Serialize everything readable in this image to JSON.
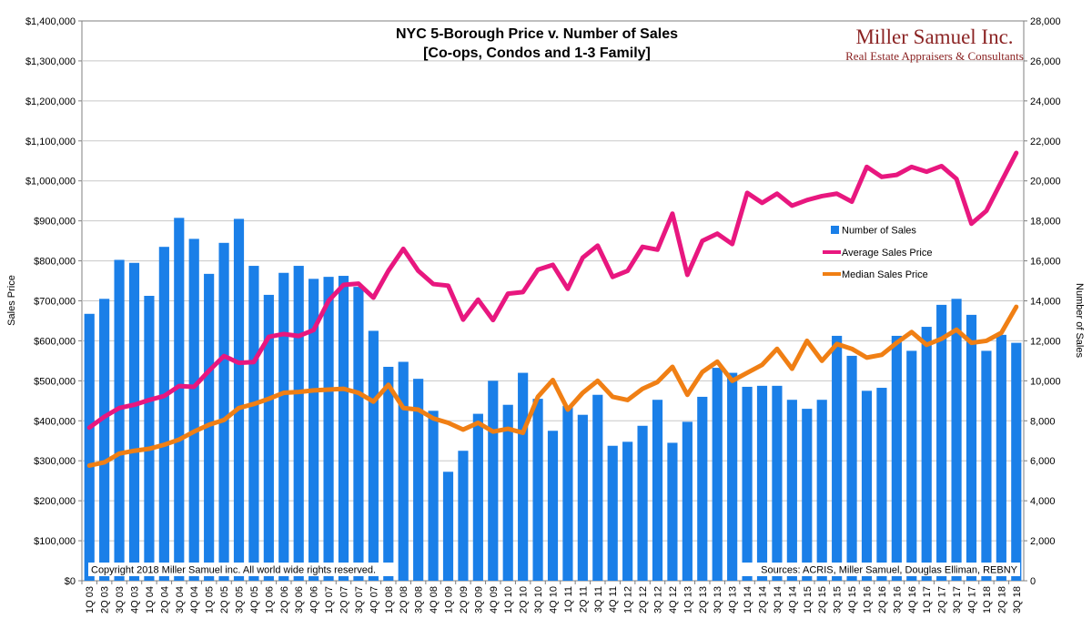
{
  "chart_data": {
    "type": "bar+line",
    "title_line1": "NYC 5-Borough Price v. Number of Sales",
    "title_line2": "[Co-ops, Condos and 1-3 Family]",
    "ylabel_left": "Sales Price",
    "ylabel_right": "Number of Sales",
    "ylim_left": [
      0,
      1400000
    ],
    "ylim_right": [
      0,
      28000
    ],
    "left_ticks": [
      "$0",
      "$100,000",
      "$200,000",
      "$300,000",
      "$400,000",
      "$500,000",
      "$600,000",
      "$700,000",
      "$800,000",
      "$900,000",
      "$1,000,000",
      "$1,100,000",
      "$1,200,000",
      "$1,300,000",
      "$1,400,000"
    ],
    "right_ticks": [
      "0",
      "2,000",
      "4,000",
      "6,000",
      "8,000",
      "10,000",
      "12,000",
      "14,000",
      "16,000",
      "18,000",
      "20,000",
      "22,000",
      "24,000",
      "26,000",
      "28,000"
    ],
    "categories": [
      "1Q 03",
      "2Q 03",
      "3Q 03",
      "4Q 03",
      "1Q 04",
      "2Q 04",
      "3Q 04",
      "4Q 04",
      "1Q 05",
      "2Q 05",
      "3Q 05",
      "4Q 05",
      "1Q 06",
      "2Q 06",
      "3Q 06",
      "4Q 06",
      "1Q 07",
      "2Q 07",
      "3Q 07",
      "4Q 07",
      "1Q 08",
      "2Q 08",
      "3Q 08",
      "4Q 08",
      "1Q 09",
      "2Q 09",
      "3Q 09",
      "4Q 09",
      "1Q 10",
      "2Q 10",
      "3Q 10",
      "4Q 10",
      "1Q 11",
      "2Q 11",
      "3Q 11",
      "4Q 11",
      "1Q 12",
      "2Q 12",
      "3Q 12",
      "4Q 12",
      "1Q 13",
      "2Q 13",
      "3Q 13",
      "4Q 13",
      "1Q 14",
      "2Q 14",
      "3Q 14",
      "4Q 14",
      "1Q 15",
      "2Q 15",
      "3Q 15",
      "4Q 15",
      "1Q 16",
      "2Q 16",
      "3Q 16",
      "4Q 16",
      "1Q 17",
      "2Q 17",
      "3Q 17",
      "4Q 17",
      "1Q 18",
      "2Q 18",
      "3Q 18"
    ],
    "series": [
      {
        "name": "Number of Sales",
        "type": "bar",
        "axis": "right",
        "color": "#1a7fe8",
        "values": [
          13350,
          14100,
          16050,
          15900,
          14250,
          16700,
          18150,
          17100,
          15350,
          16900,
          18100,
          15750,
          14300,
          15400,
          15750,
          15100,
          15200,
          15250,
          14700,
          12500,
          10700,
          10950,
          10100,
          8500,
          5450,
          6500,
          8350,
          10000,
          8800,
          10400,
          9100,
          7500,
          8750,
          8300,
          9300,
          6750,
          6950,
          7750,
          9050,
          6900,
          7950,
          9200,
          10650,
          10400,
          9700,
          9750,
          9750,
          9050,
          8600,
          9050,
          12250,
          11250,
          9500,
          9650,
          12250,
          11500,
          12700,
          13800,
          14100,
          13300,
          11500,
          12300,
          11900
        ]
      },
      {
        "name": "Average Sales Price",
        "type": "line",
        "axis": "left",
        "color": "#e8177f",
        "values": [
          383000,
          410000,
          432000,
          440000,
          452000,
          462000,
          487000,
          485000,
          525000,
          562000,
          545000,
          547000,
          610000,
          617000,
          612000,
          627000,
          700000,
          740000,
          743000,
          708000,
          775000,
          830000,
          775000,
          742000,
          738000,
          653000,
          703000,
          652000,
          718000,
          722000,
          778000,
          790000,
          730000,
          808000,
          838000,
          760000,
          775000,
          835000,
          828000,
          918000,
          765000,
          850000,
          868000,
          842000,
          970000,
          945000,
          968000,
          938000,
          952000,
          962000,
          968000,
          948000,
          1035000,
          1010000,
          1015000,
          1035000,
          1023000,
          1037000,
          1005000,
          893000,
          925000,
          998000,
          1070000
        ]
      },
      {
        "name": "Median Sales Price",
        "type": "line",
        "axis": "left",
        "color": "#f07f14",
        "values": [
          288000,
          296000,
          318000,
          325000,
          330000,
          340000,
          353000,
          373000,
          390000,
          402000,
          432000,
          442000,
          455000,
          470000,
          472000,
          476000,
          478000,
          480000,
          470000,
          448000,
          490000,
          432000,
          428000,
          406000,
          395000,
          378000,
          395000,
          373000,
          380000,
          370000,
          460000,
          502000,
          428000,
          470000,
          500000,
          460000,
          452000,
          480000,
          497000,
          535000,
          465000,
          522000,
          548000,
          500000,
          520000,
          540000,
          580000,
          530000,
          600000,
          550000,
          592000,
          580000,
          558000,
          565000,
          595000,
          622000,
          590000,
          605000,
          628000,
          595000,
          600000,
          620000,
          685000
        ]
      }
    ],
    "legend": [
      "Number of Sales",
      "Average Sales Price",
      "Median Sales Price"
    ],
    "legend_position": "right"
  },
  "branding": {
    "brand_name": "Miller Samuel Inc.",
    "brand_tagline": "Real Estate Appraisers & Consultants",
    "brand_color": "#8b2323"
  },
  "footer": {
    "copyright": "Copyright 2018 Miller Samuel inc.  All world wide rights reserved.",
    "sources": "Sources: ACRIS, Miller Samuel, Douglas Elliman, REBNY"
  }
}
